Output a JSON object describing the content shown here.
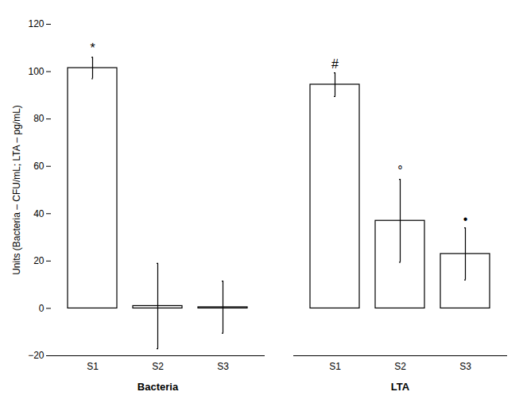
{
  "chart_data": {
    "type": "bar",
    "categories": [
      "S1",
      "S2",
      "S3"
    ],
    "groups": [
      {
        "name": "Bacteria",
        "values": [
          101.5,
          1.0,
          0.5
        ],
        "errors": [
          4.5,
          18.0,
          11.0
        ],
        "annotations": [
          "*",
          null,
          null
        ]
      },
      {
        "name": "LTA",
        "values": [
          94.5,
          37.0,
          23.0
        ],
        "errors": [
          5.0,
          17.5,
          11.0
        ],
        "annotations": [
          "#",
          "°",
          "•"
        ]
      }
    ],
    "color": "#ffffff",
    "ylabel": "Units (Bacteria – CFU/mL; LTA – pg/mL)",
    "ylim": [
      -20,
      120
    ],
    "yticks": [
      -20,
      0,
      20,
      40,
      60,
      80,
      100,
      120
    ]
  }
}
